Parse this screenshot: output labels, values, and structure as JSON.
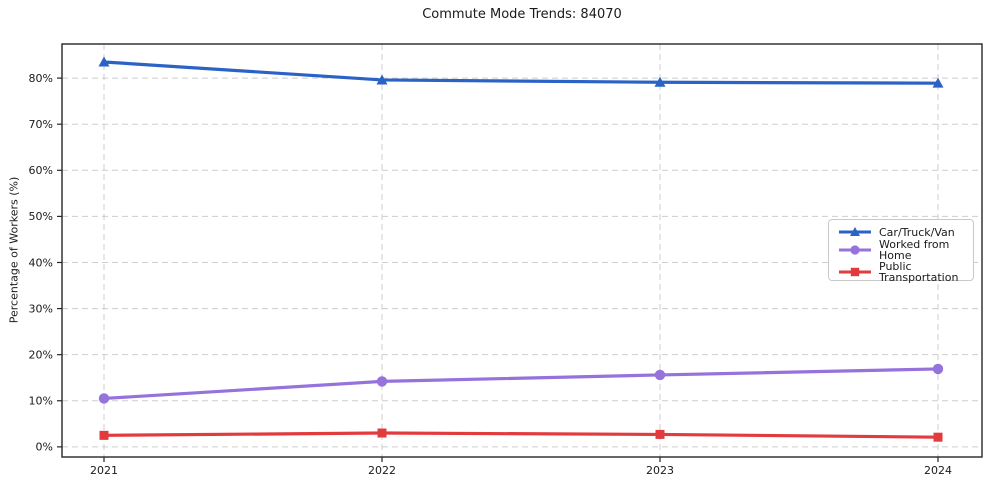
{
  "chart_data": {
    "type": "line",
    "title": "Commute Mode Trends: 84070",
    "xlabel": "",
    "ylabel": "Percentage of Workers (%)",
    "x": [
      2021,
      2022,
      2023,
      2024
    ],
    "xtick_labels": [
      "2021",
      "2022",
      "2023",
      "2024"
    ],
    "yticks": [
      0,
      10,
      20,
      30,
      40,
      50,
      60,
      70,
      80
    ],
    "ytick_labels": [
      "0%",
      "10%",
      "20%",
      "30%",
      "40%",
      "50%",
      "60%",
      "70%",
      "80%"
    ],
    "ylim": [
      -2.2,
      87.4
    ],
    "grid": true,
    "legend_position": "center-right",
    "series": [
      {
        "name": "Car/Truck/Van",
        "marker": "triangle",
        "color": "#2b62c6",
        "values": [
          83.5,
          79.6,
          79.1,
          78.9
        ]
      },
      {
        "name": "Worked from Home",
        "marker": "circle",
        "color": "#9572dc",
        "values": [
          10.5,
          14.2,
          15.6,
          16.9
        ]
      },
      {
        "name": "Public Transportation",
        "marker": "square",
        "color": "#e23b3e",
        "values": [
          2.5,
          3.0,
          2.7,
          2.1
        ]
      }
    ]
  }
}
